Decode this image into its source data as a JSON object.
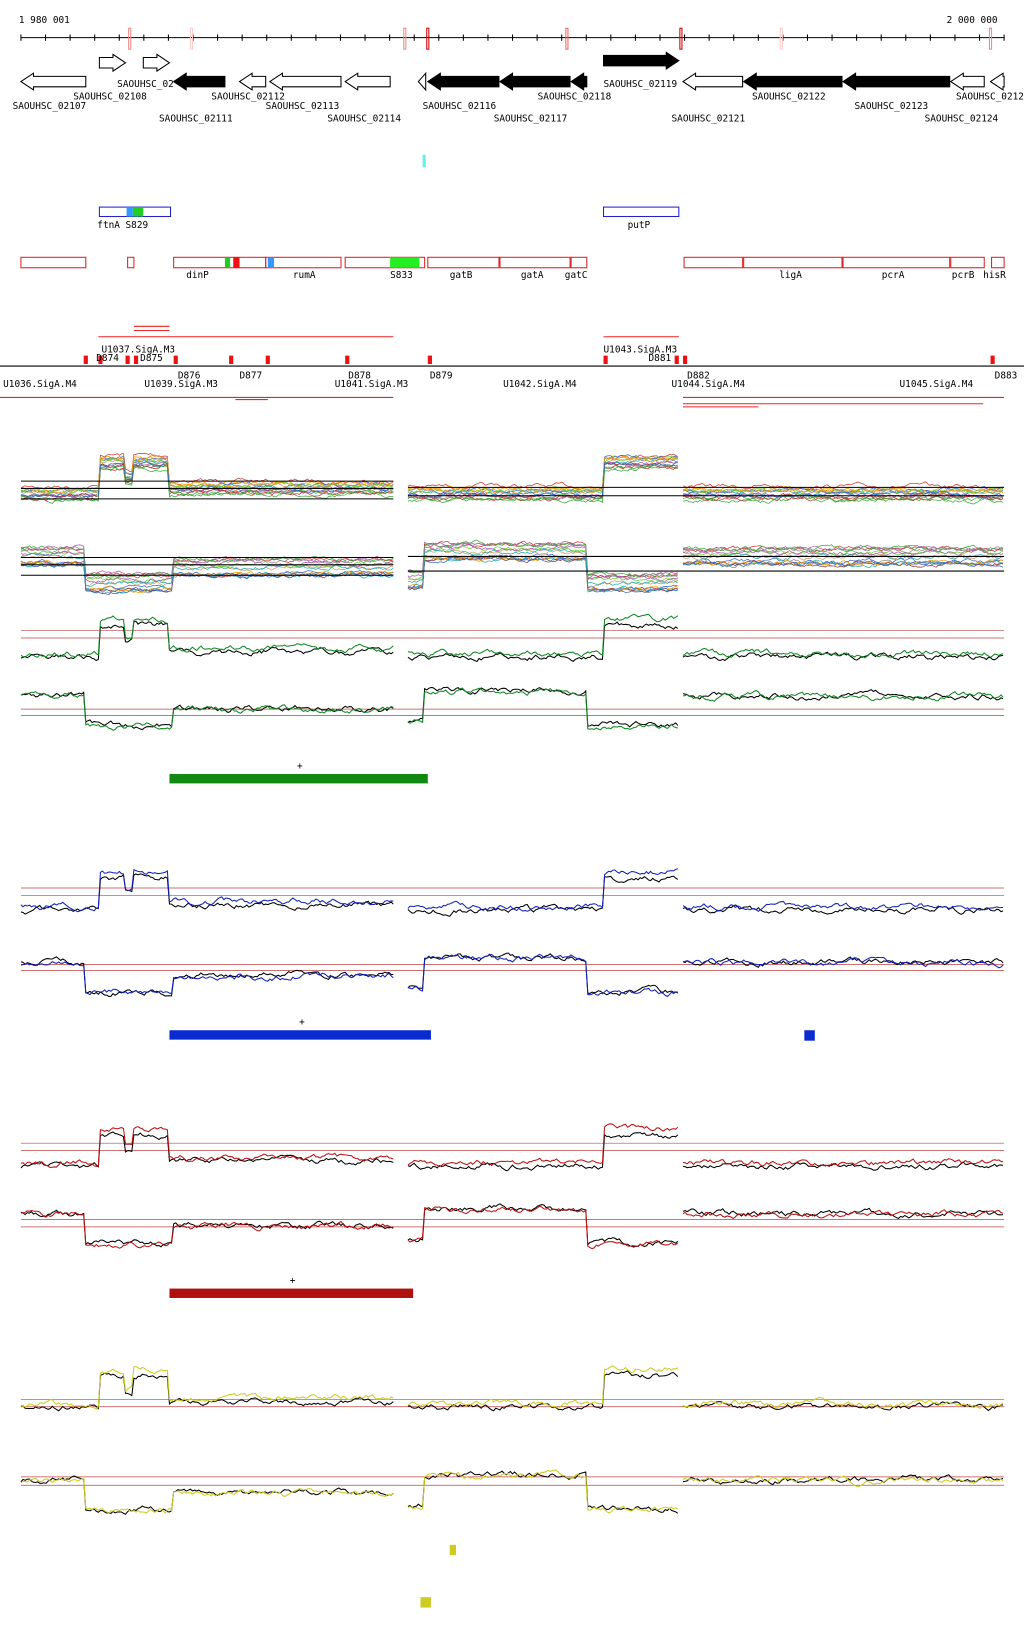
{
  "ruler": {
    "start": "1 980 001",
    "end": "2 000 000"
  },
  "genes": [
    "SAOUHSC_02107",
    "SAOUHSC_02108",
    "SAOUHSC_02",
    "SAOUHSC_02111",
    "SAOUHSC_02112",
    "SAOUHSC_02113",
    "SAOUHSC_02114",
    "SAOUHSC_02116",
    "SAOUHSC_02117",
    "SAOUHSC_02118",
    "SAOUHSC_02119",
    "SAOUHSC_02121",
    "SAOUHSC_02122",
    "SAOUHSC_02123",
    "SAOUHSC_02124",
    "SAOUHSC_0212"
  ],
  "blue_features": [
    "ftnA",
    "S829",
    "putP"
  ],
  "red_features": [
    "dinP",
    "rumA",
    "S833",
    "gatB",
    "gatA",
    "gatC",
    "ligA",
    "pcrA",
    "pcrB",
    "hisR"
  ],
  "operons": [
    "U1036.SigA.M4",
    "U1037.SigA.M3",
    "D874",
    "D875",
    "U1039.SigA.M3",
    "D876",
    "D877",
    "D878",
    "D879",
    "U1041.SigA.M3",
    "U1042.SigA.M4",
    "U1043.SigA.M3",
    "D881",
    "D882",
    "U1044.SigA.M4",
    "U1045.SigA.M4",
    "D883"
  ],
  "panels": [
    {
      "mark": "+"
    },
    {
      "mark": "+"
    },
    {
      "mark": "+"
    }
  ]
}
